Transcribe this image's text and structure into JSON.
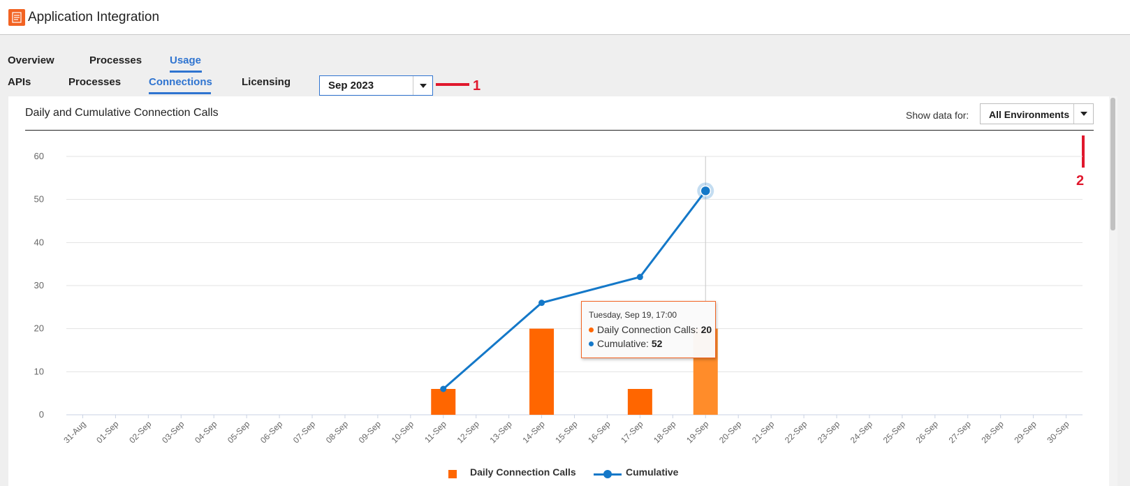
{
  "app": {
    "title": "Application Integration"
  },
  "nav": {
    "main_tabs": [
      {
        "label": "Overview"
      },
      {
        "label": "Processes"
      },
      {
        "label": "Usage"
      }
    ],
    "sub_tabs": [
      {
        "label": "APIs"
      },
      {
        "label": "Processes"
      },
      {
        "label": "Connections"
      },
      {
        "label": "Licensing"
      }
    ]
  },
  "filters": {
    "month": "Sep 2023",
    "show_data_for_label": "Show data for:",
    "environment": "All Environments"
  },
  "annotations": {
    "one": "1",
    "two": "2"
  },
  "colors": {
    "accent": "#2f74d0",
    "daily": "#ff6600",
    "daily_hover": "#ff8c2a",
    "cumulative": "#1478c8",
    "annotation": "#e0182d"
  },
  "tooltip": {
    "header": "Tuesday, Sep 19, 17:00",
    "daily_label": "Daily Connection Calls:",
    "daily_value": "20",
    "cumulative_label": "Cumulative:",
    "cumulative_value": "52"
  },
  "legend": {
    "daily": "Daily Connection Calls",
    "cumulative": "Cumulative"
  },
  "chart_data": {
    "type": "bar",
    "title": "Daily and Cumulative Connection Calls",
    "xlabel": "",
    "ylabel": "",
    "ylim": [
      0,
      60
    ],
    "yticks": [
      0,
      10,
      20,
      30,
      40,
      50,
      60
    ],
    "grid": true,
    "legend_position": "bottom",
    "categories": [
      "31-Aug",
      "01-Sep",
      "02-Sep",
      "03-Sep",
      "04-Sep",
      "05-Sep",
      "06-Sep",
      "07-Sep",
      "08-Sep",
      "09-Sep",
      "10-Sep",
      "11-Sep",
      "12-Sep",
      "13-Sep",
      "14-Sep",
      "15-Sep",
      "16-Sep",
      "17-Sep",
      "18-Sep",
      "19-Sep",
      "20-Sep",
      "21-Sep",
      "22-Sep",
      "23-Sep",
      "24-Sep",
      "25-Sep",
      "26-Sep",
      "27-Sep",
      "28-Sep",
      "29-Sep",
      "30-Sep"
    ],
    "series": [
      {
        "name": "Daily Connection Calls",
        "type": "bar",
        "x": [
          "11-Sep",
          "14-Sep",
          "17-Sep",
          "19-Sep"
        ],
        "values": [
          6,
          20,
          6,
          20
        ]
      },
      {
        "name": "Cumulative",
        "type": "line",
        "x": [
          "11-Sep",
          "14-Sep",
          "17-Sep",
          "19-Sep"
        ],
        "values": [
          6,
          26,
          32,
          52
        ]
      }
    ],
    "highlighted": "19-Sep"
  }
}
